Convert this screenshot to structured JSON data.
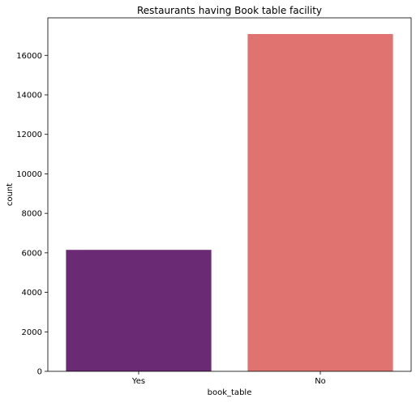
{
  "chart_data": {
    "type": "bar",
    "title": "Restaurants having Book table facility",
    "xlabel": "book_table",
    "ylabel": "count",
    "categories": [
      "Yes",
      "No"
    ],
    "values": [
      6150,
      17080
    ],
    "colors": [
      "#6b2a74",
      "#e07370"
    ],
    "ylim": [
      0,
      17900
    ],
    "yticks": [
      0,
      2000,
      4000,
      6000,
      8000,
      10000,
      12000,
      14000,
      16000
    ],
    "grid": false,
    "legend": "none"
  }
}
